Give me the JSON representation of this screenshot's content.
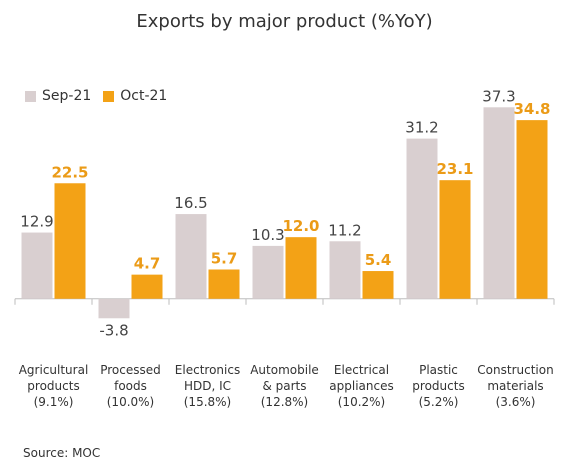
{
  "chart_data": {
    "type": "bar",
    "title": "Exports by major product (%YoY)",
    "categories": [
      [
        "Agricultural",
        "products",
        "(9.1%)"
      ],
      [
        "Processed",
        "foods",
        "(10.0%)"
      ],
      [
        "Electronics",
        "HDD, IC",
        "(15.8%)"
      ],
      [
        "Automobile",
        "& parts",
        "(12.8%)"
      ],
      [
        "Electrical",
        "appliances",
        "(10.2%)"
      ],
      [
        "Plastic",
        "products",
        "(5.2%)"
      ],
      [
        "Construction",
        "materials",
        "(3.6%)"
      ]
    ],
    "series": [
      {
        "name": "Sep-21",
        "color": "#d9cfd0",
        "label_color": "#444444",
        "values": [
          12.9,
          -3.8,
          16.5,
          10.3,
          11.2,
          31.2,
          37.3
        ]
      },
      {
        "name": "Oct-21",
        "color": "#f3a216",
        "label_color": "#eb9b17",
        "values": [
          22.5,
          4.7,
          5.7,
          12.0,
          5.4,
          23.1,
          34.8
        ]
      }
    ],
    "ylim": [
      -5.5,
      39.5
    ],
    "xlabel": "",
    "ylabel": "",
    "grid": false,
    "legend_position": "top-left"
  },
  "source": "Source: MOC"
}
